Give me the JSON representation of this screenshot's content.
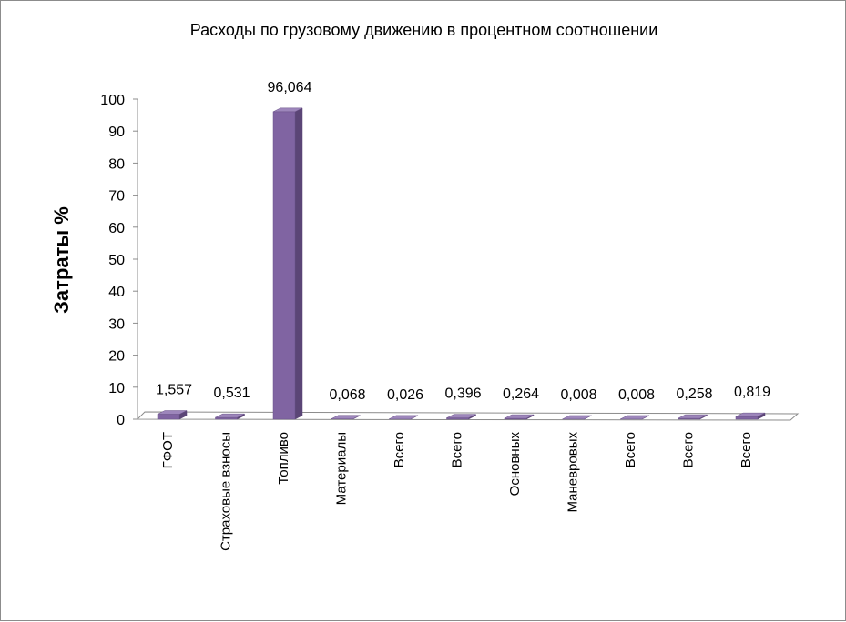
{
  "chart_data": {
    "type": "bar",
    "title": "Расходы по грузовому движению в процентном соотношении",
    "xlabel": "",
    "ylabel": "Затраты %",
    "ylim": [
      0,
      100
    ],
    "yticks": [
      0,
      10,
      20,
      30,
      40,
      50,
      60,
      70,
      80,
      90,
      100
    ],
    "categories": [
      "ГФОТ",
      "Страховые взносы",
      "Топливо",
      "Материалы",
      "Всего",
      "Всего",
      "Основных",
      "Маневровых",
      "Всего",
      "Всего",
      "Всего"
    ],
    "values": [
      1.557,
      0.531,
      96.064,
      0.068,
      0.026,
      0.396,
      0.264,
      0.008,
      0.008,
      0.258,
      0.819
    ],
    "value_labels": [
      "1,557",
      "0,531",
      "96,064",
      "0,068",
      "0,026",
      "0,396",
      "0,264",
      "0,008",
      "0,008",
      "0,258",
      "0,819"
    ],
    "grid": false,
    "legend": "none",
    "colors": {
      "bar_front": "#8064a2",
      "bar_side": "#5b4576",
      "bar_top": "#9d86bb",
      "axis": "#8c8c8c"
    }
  }
}
